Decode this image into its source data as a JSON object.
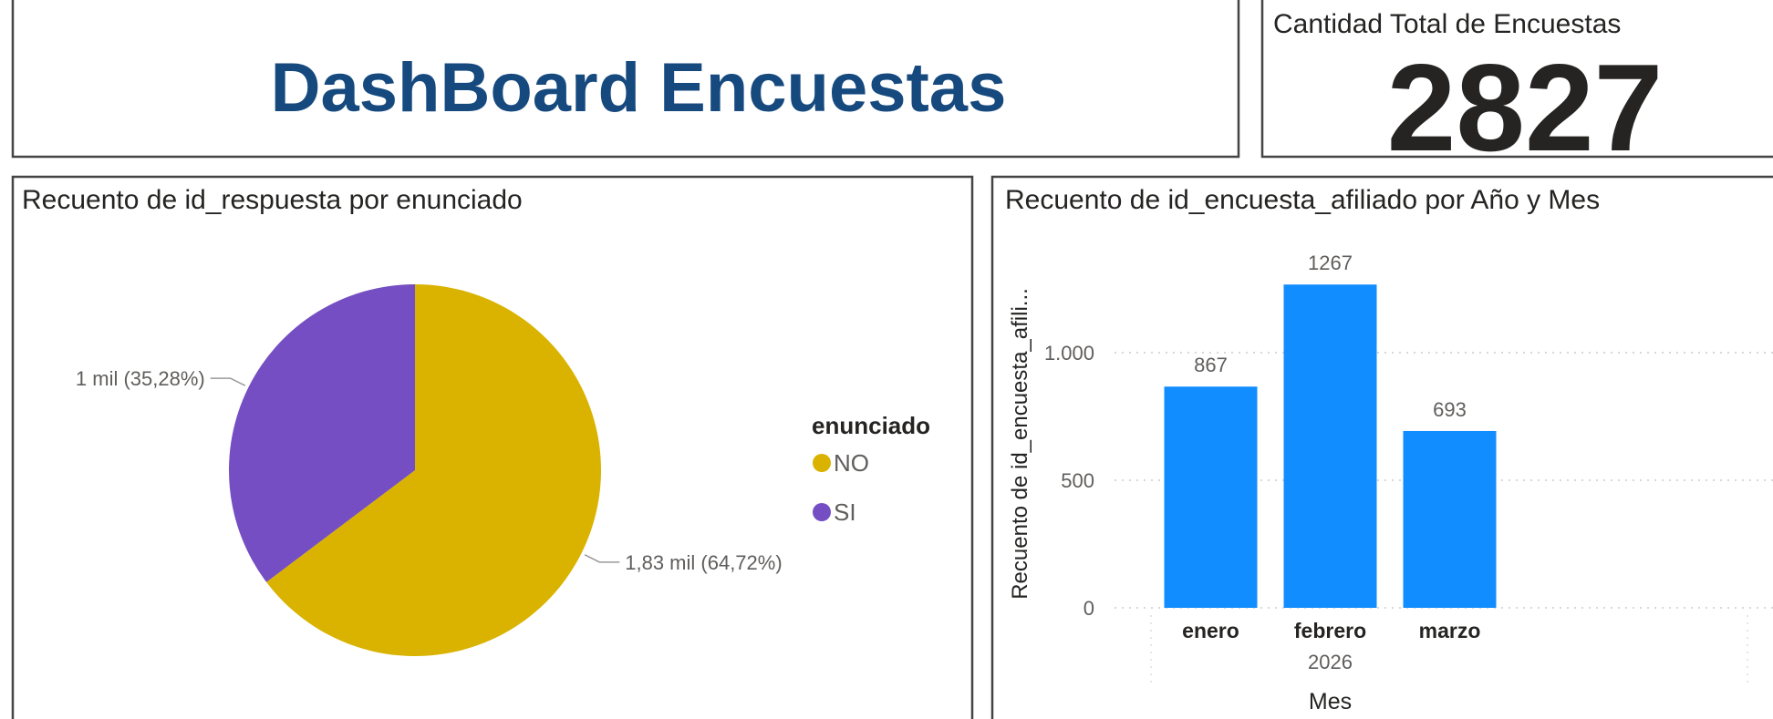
{
  "header": {
    "title": "DashBoard Encuestas"
  },
  "card": {
    "label": "Cantidad Total de Encuestas",
    "value": 2827
  },
  "chart_data": [
    {
      "type": "pie",
      "title": "Recuento de id_respuesta por enunciado",
      "legend_title": "enunciado",
      "legend": "right",
      "categories": [
        "NO",
        "SI"
      ],
      "values": [
        64.72,
        35.28
      ],
      "value_labels": [
        "1,83 mil (64,72%)",
        "1 mil (35,28%)"
      ],
      "colors": [
        "#D9B300",
        "#744EC2"
      ]
    },
    {
      "type": "bar",
      "title": "Recuento de id_encuesta_afiliado por Año y Mes",
      "categories": [
        "enero",
        "febrero",
        "marzo"
      ],
      "values": [
        867,
        1267,
        693
      ],
      "group_label": "2026",
      "x_label": "Mes",
      "y_label": "Recuento de id_encuesta_afili...",
      "color": "#118DFF",
      "ylim": [
        0,
        1500
      ],
      "yticks": [
        0,
        500,
        {
          "value": 1000,
          "label": "1.000"
        }
      ],
      "grid": true
    }
  ]
}
